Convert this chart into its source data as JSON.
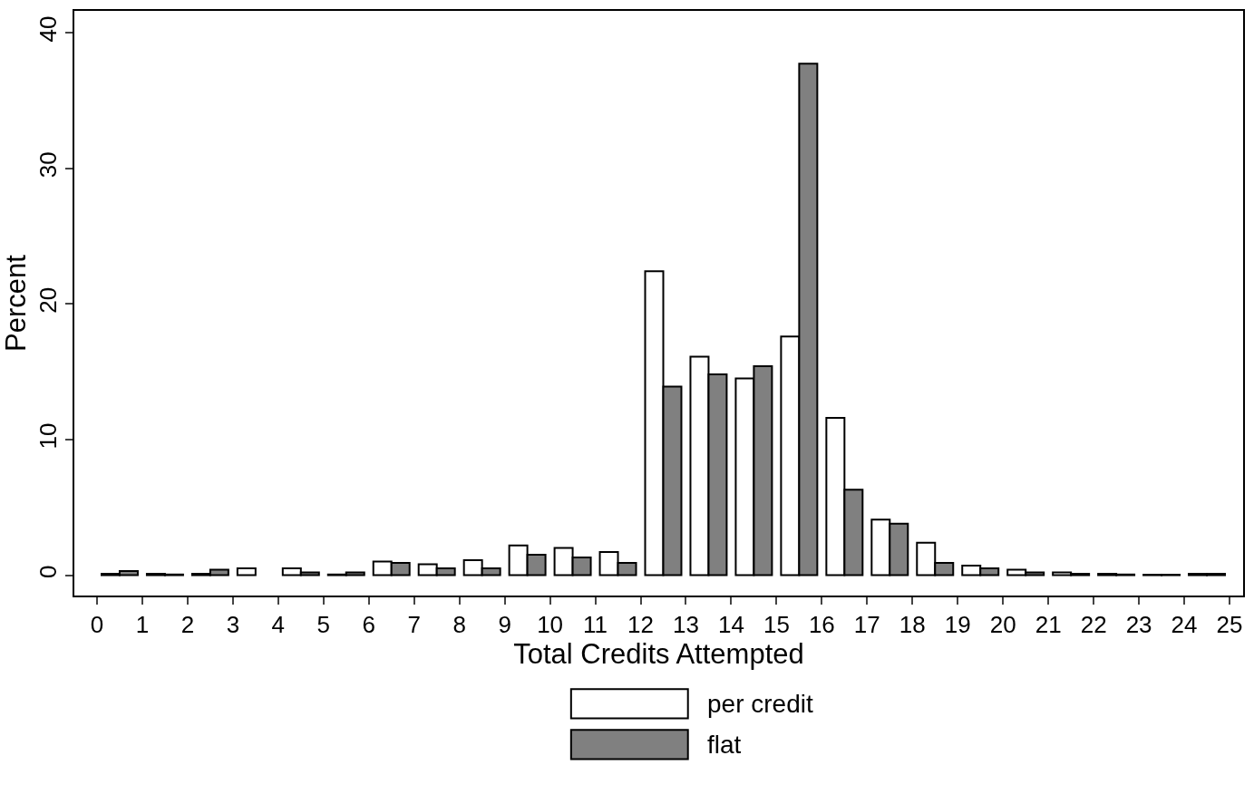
{
  "chart_data": {
    "type": "histogram",
    "xlabel": "Total Credits Attempted",
    "ylabel": "Percent",
    "bins": [
      0,
      1,
      2,
      3,
      4,
      5,
      6,
      7,
      8,
      9,
      10,
      11,
      12,
      13,
      14,
      15,
      16,
      17,
      18,
      19,
      20,
      21,
      22,
      23,
      24,
      25
    ],
    "series": [
      {
        "name": "per credit",
        "color": "#ffffff",
        "values": [
          0.1,
          0.1,
          0.1,
          0.5,
          0.5,
          0.05,
          1.0,
          0.8,
          1.1,
          2.2,
          2.0,
          1.7,
          22.4,
          16.1,
          14.5,
          17.6,
          11.6,
          4.1,
          2.4,
          0.7,
          0.4,
          0.2,
          0.1,
          0.03,
          0.1
        ]
      },
      {
        "name": "flat",
        "color": "#808080",
        "values": [
          0.3,
          0.05,
          0.4,
          null,
          0.2,
          0.2,
          0.9,
          0.5,
          0.5,
          1.5,
          1.3,
          0.9,
          13.9,
          14.8,
          15.4,
          37.7,
          6.3,
          3.8,
          0.9,
          0.5,
          0.2,
          0.1,
          0.05,
          0.03,
          0.1
        ]
      }
    ],
    "xlim": [
      -0.5,
      25.3
    ],
    "xticks": [
      0,
      1,
      2,
      3,
      4,
      5,
      6,
      7,
      8,
      9,
      10,
      11,
      12,
      13,
      14,
      15,
      16,
      17,
      18,
      19,
      20,
      21,
      22,
      23,
      24,
      25
    ],
    "ylim": [
      -1.5,
      41.6
    ],
    "yticks": [
      0,
      10,
      20,
      30,
      40
    ],
    "grid": false,
    "legend": "bottom"
  }
}
